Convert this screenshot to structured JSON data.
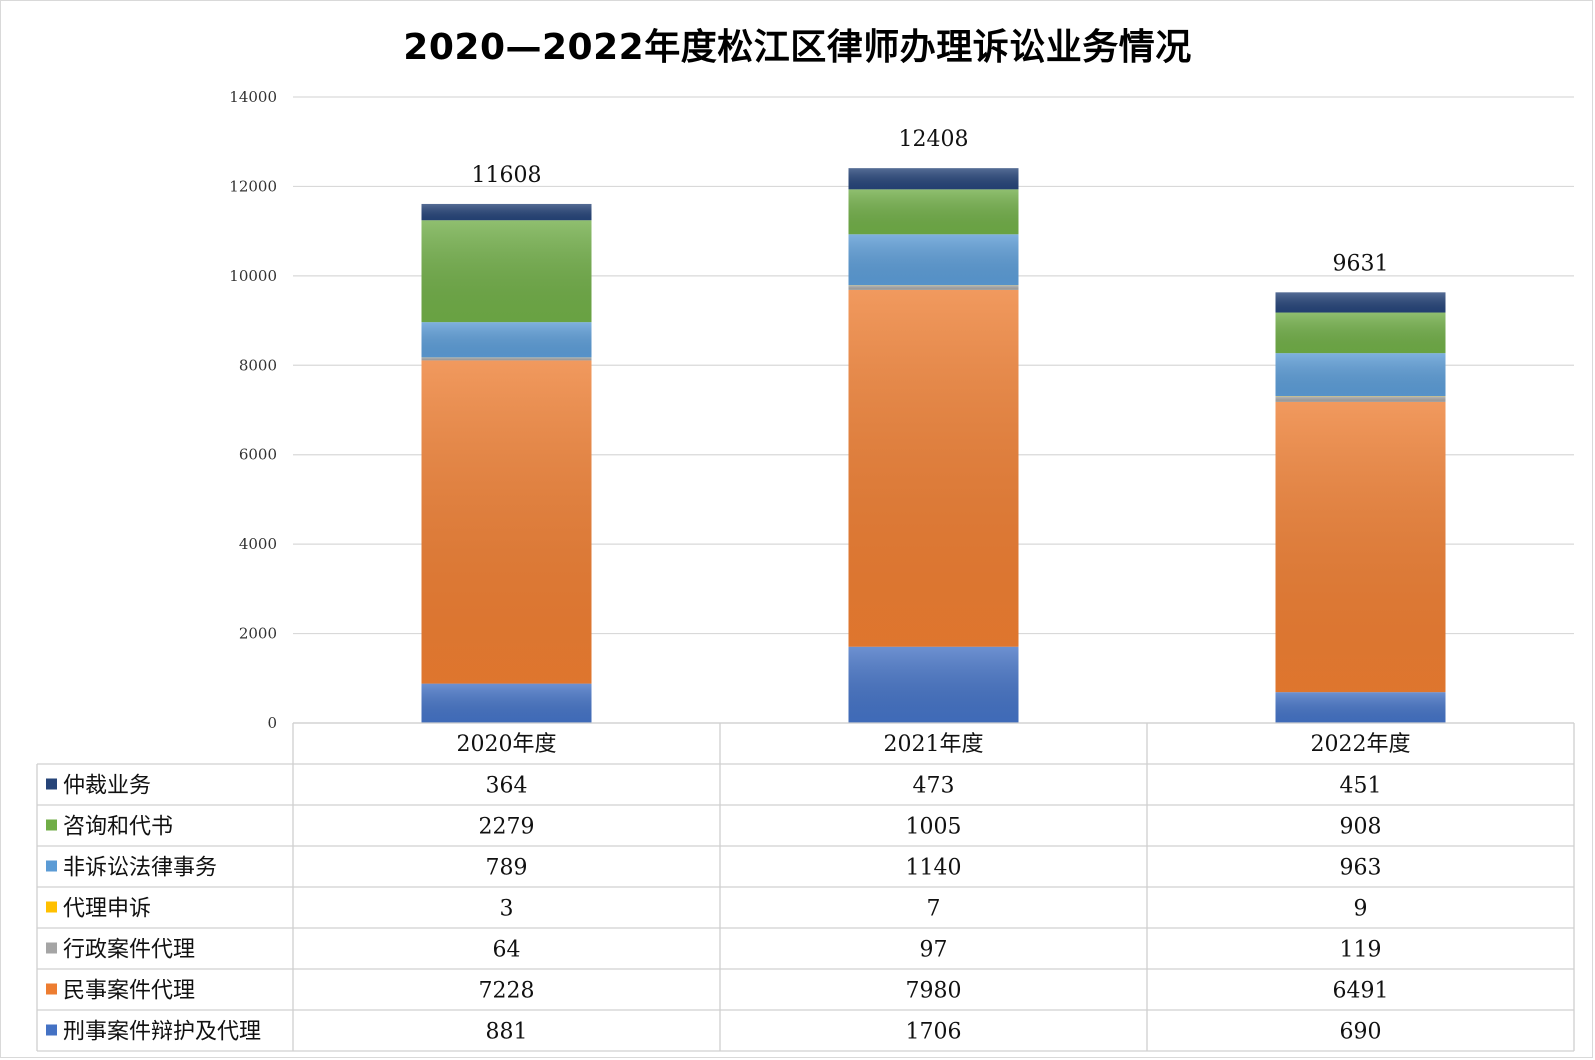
{
  "chart_data": {
    "type": "bar",
    "stacked": true,
    "title": "2020—2022年度松江区律师办理诉讼业务情况",
    "categories": [
      "2020年度",
      "2021年度",
      "2022年度"
    ],
    "ylim": [
      0,
      14000
    ],
    "yticks": [
      0,
      2000,
      4000,
      6000,
      8000,
      10000,
      12000,
      14000
    ],
    "grid": true,
    "legend": "data-table-left",
    "totals": [
      11608,
      12408,
      9631
    ],
    "series": [
      {
        "name": "刑事案件辩护及代理",
        "color": "#4472C4",
        "values": [
          881,
          1706,
          690
        ]
      },
      {
        "name": "民事案件代理",
        "color": "#ED7D31",
        "values": [
          7228,
          7980,
          6491
        ]
      },
      {
        "name": "行政案件代理",
        "color": "#A5A5A5",
        "values": [
          64,
          97,
          119
        ]
      },
      {
        "name": "代理申诉",
        "color": "#FFC000",
        "values": [
          3,
          7,
          9
        ]
      },
      {
        "name": "非诉讼法律事务",
        "color": "#5B9BD5",
        "values": [
          789,
          1140,
          963
        ]
      },
      {
        "name": "咨询和代书",
        "color": "#70AD47",
        "values": [
          2279,
          1005,
          908
        ]
      },
      {
        "name": "仲裁业务",
        "color": "#264478",
        "values": [
          364,
          473,
          451
        ]
      }
    ]
  }
}
